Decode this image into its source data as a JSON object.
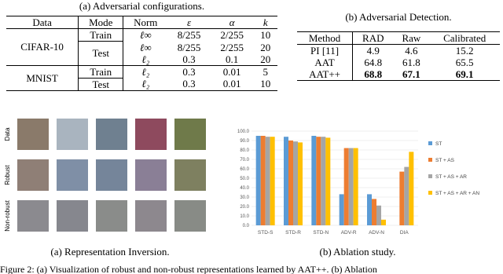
{
  "table_a": {
    "title": "(a) Adversarial configurations.",
    "header": [
      "Data",
      "Mode",
      "Norm",
      "ε",
      "α",
      "k"
    ],
    "groups": [
      {
        "name": "CIFAR-10",
        "modes": [
          {
            "mode": "Train",
            "rows": [
              [
                "ℓ∞",
                "8/255",
                "2/255",
                "10"
              ]
            ]
          },
          {
            "mode": "Test",
            "rows": [
              [
                "ℓ∞",
                "8/255",
                "2/255",
                "20"
              ],
              [
                "ℓ₂",
                "0.3",
                "0.1",
                "20"
              ]
            ]
          }
        ]
      },
      {
        "name": "MNIST",
        "modes": [
          {
            "mode": "Train",
            "rows": [
              [
                "ℓ₂",
                "0.3",
                "0.01",
                "5"
              ]
            ]
          },
          {
            "mode": "Test",
            "rows": [
              [
                "ℓ₂",
                "0.3",
                "0.01",
                "10"
              ]
            ]
          }
        ]
      }
    ]
  },
  "table_b": {
    "title": "(b) Adversarial Detection.",
    "header": [
      "Method",
      "RAD",
      "Raw",
      "Calibrated"
    ],
    "rows": [
      [
        "PI [11]",
        "4.9",
        "4.6",
        "15.2"
      ],
      [
        "AAT",
        "64.8",
        "61.8",
        "65.5"
      ],
      [
        "AAT++",
        "68.8",
        "67.1",
        "69.1"
      ]
    ],
    "bold_rows": [
      2
    ]
  },
  "image_grid": {
    "row_labels": [
      "Data",
      "Robust",
      "Non-robust"
    ],
    "caption": "(a) Representation Inversion."
  },
  "chart_data": {
    "type": "bar",
    "caption": "(b) Ablation study.",
    "categories": [
      "STD-S",
      "STD-R",
      "STD-N",
      "ADV-R",
      "ADV-N",
      "DIA"
    ],
    "series": [
      {
        "name": "ST",
        "color": "#5b9bd5",
        "values": [
          95,
          94,
          95,
          33,
          33,
          null
        ]
      },
      {
        "name": "ST + AS",
        "color": "#ed7d31",
        "values": [
          95,
          90,
          94,
          82,
          28,
          57
        ]
      },
      {
        "name": "ST + AS + AR",
        "color": "#a5a5a5",
        "values": [
          94,
          89,
          94,
          82,
          21,
          62
        ]
      },
      {
        "name": "ST + AS + AR + AN",
        "color": "#ffc000",
        "values": [
          94,
          88,
          93,
          82,
          6,
          78
        ]
      }
    ],
    "ylim": [
      0,
      100
    ],
    "yticks": [
      {
        "value": 0,
        "label": "0.0"
      },
      {
        "value": 10,
        "label": "10.0"
      },
      {
        "value": 20,
        "label": "20.0"
      },
      {
        "value": 30,
        "label": "30.0"
      },
      {
        "value": 40,
        "label": "40.0"
      },
      {
        "value": 50,
        "label": "50.0"
      },
      {
        "value": 60,
        "label": "60.0"
      },
      {
        "value": 70,
        "label": "70.0"
      },
      {
        "value": 80,
        "label": "80.0"
      },
      {
        "value": 90,
        "label": "90.0"
      },
      {
        "value": 100,
        "label": "100.0"
      }
    ],
    "grid": true,
    "legend": "right"
  },
  "figure_caption": "Figure 2: (a) Visualization of robust and non-robust representations learned by AAT++. (b) Ablation"
}
